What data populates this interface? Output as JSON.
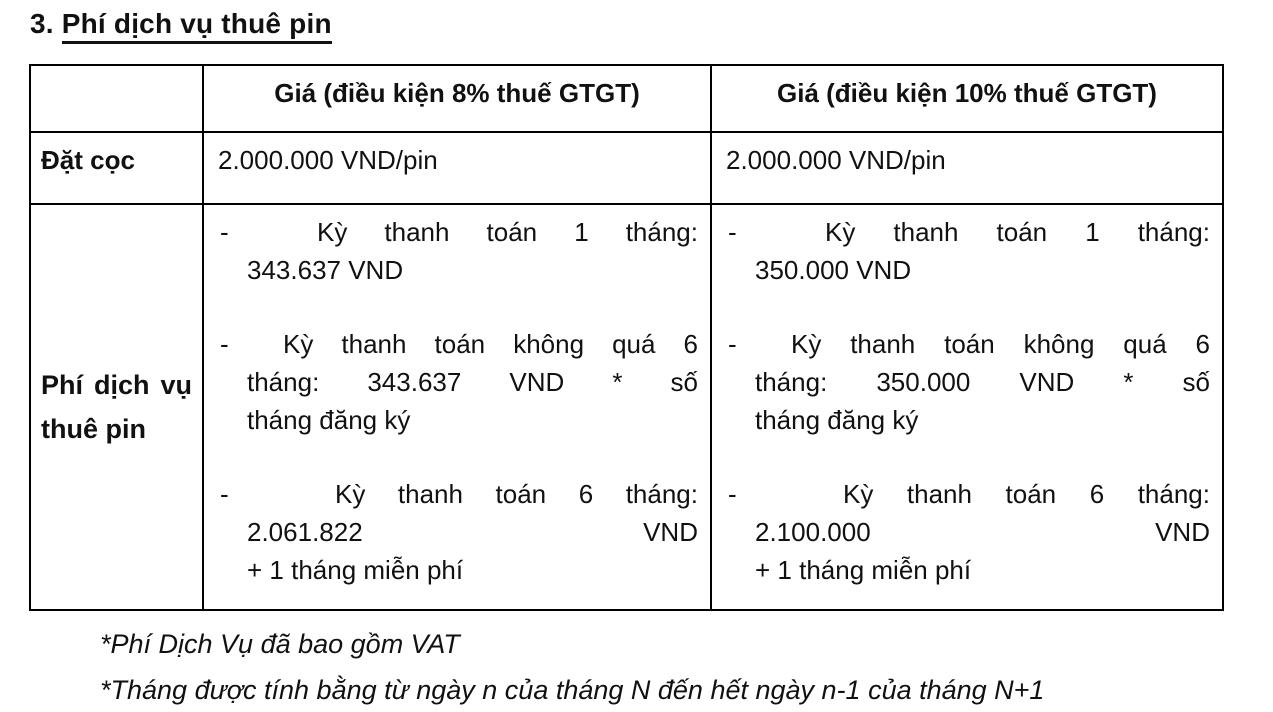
{
  "colors": {
    "background": "#ffffff",
    "text": "#111111",
    "border": "#000000"
  },
  "title": {
    "number": "3.",
    "text": "Phí dịch vụ thuê pin"
  },
  "table": {
    "col_headers": {
      "blank": "",
      "price_8": "Giá (điều kiện 8% thuế GTGT)",
      "price_10": "Giá (điều kiện 10% thuế GTGT)"
    },
    "deposit_row": {
      "label": "Đặt cọc",
      "price_8": "2.000.000 VND/pin",
      "price_10": "2.000.000 VND/pin"
    },
    "service_row": {
      "label": "Phí dịch vụ thuê pin",
      "marker": "-",
      "items_8": [
        {
          "lines": [
            "Kỳ thanh toán 1 tháng:",
            "343.637 VND"
          ]
        },
        {
          "lines": [
            "Kỳ thanh toán không quá 6",
            "tháng: 343.637 VND * số",
            "tháng đăng ký"
          ]
        },
        {
          "lines": [
            "Kỳ thanh toán 6 tháng:",
            "2.061.822 VND",
            "+ 1 tháng miễn phí"
          ]
        }
      ],
      "items_10": [
        {
          "lines": [
            "Kỳ thanh toán 1 tháng:",
            "350.000 VND"
          ]
        },
        {
          "lines": [
            "Kỳ thanh toán không quá 6",
            "tháng: 350.000 VND * số",
            "tháng đăng ký"
          ]
        },
        {
          "lines": [
            "Kỳ thanh toán 6 tháng:",
            "2.100.000 VND",
            "+ 1 tháng miễn phí"
          ]
        }
      ]
    }
  },
  "notes": [
    "*Phí Dịch Vụ đã bao gồm VAT",
    "*Tháng được tính bằng từ ngày n của tháng N đến hết ngày n-1 của tháng N+1"
  ]
}
